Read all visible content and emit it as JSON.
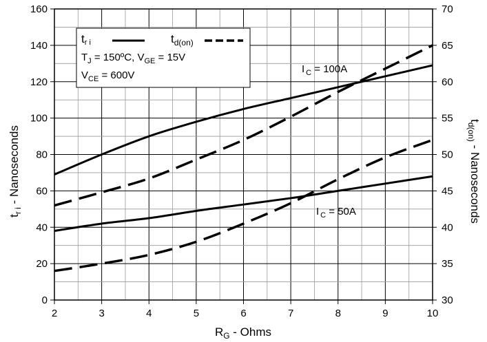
{
  "chart_data": {
    "type": "line",
    "x_axis": {
      "label_main": "R",
      "label_sub": "G",
      "label_rest": " - Ohms",
      "min": 2,
      "max": 10,
      "ticks": [
        "2",
        "3",
        "4",
        "5",
        "6",
        "7",
        "8",
        "9",
        "10"
      ]
    },
    "y_axis_left": {
      "label_main": "t",
      "label_sub": "r i",
      "label_rest": " - Nanoseconds",
      "min": 0,
      "max": 160,
      "ticks": [
        "0",
        "20",
        "40",
        "60",
        "80",
        "100",
        "120",
        "140",
        "160"
      ]
    },
    "y_axis_right": {
      "label_main": "t",
      "label_sub": "d(on)",
      "label_rest": " - Nanoseconds",
      "min": 30,
      "max": 70,
      "ticks": [
        "30",
        "35",
        "40",
        "45",
        "50",
        "55",
        "60",
        "65",
        "70"
      ]
    },
    "grid": true,
    "legend": {
      "placement": "top-left",
      "tri_main": "t",
      "tri_sub": "r i",
      "tdon_main": "t",
      "tdon_sub": "d(on)",
      "cond1_a": "T",
      "cond1_a_sub": "J",
      "cond1_b": " = 150ºC,  V",
      "cond1_b_sub": "GE",
      "cond1_c": " = 15V",
      "cond2_a": "V",
      "cond2_a_sub": "CE",
      "cond2_b": " = 600V"
    },
    "annotations": {
      "ic100_main": "I",
      "ic100_sub": "C",
      "ic100_rest": " = 100A",
      "ic50_main": "I",
      "ic50_sub": "C",
      "ic50_rest": " = 50A"
    },
    "series": [
      {
        "key": "tri_100",
        "axis": "left",
        "style": "solid",
        "x": [
          2,
          3,
          4,
          5,
          6,
          7,
          8,
          9,
          10
        ],
        "y": [
          69,
          80,
          90,
          98,
          105,
          111,
          117,
          123,
          129
        ]
      },
      {
        "key": "tri_50",
        "axis": "left",
        "style": "solid",
        "x": [
          2,
          3,
          4,
          5,
          6,
          7,
          8,
          9,
          10
        ],
        "y": [
          38,
          42,
          45,
          49,
          52.5,
          56,
          60,
          64,
          68
        ]
      },
      {
        "key": "tdon_100",
        "axis": "right",
        "style": "dashed",
        "x": [
          2,
          3,
          4,
          5,
          6,
          7,
          8,
          9,
          10
        ],
        "y": [
          43,
          44.8,
          46.7,
          49.3,
          52,
          55.2,
          58.6,
          61.8,
          65
        ]
      },
      {
        "key": "tdon_50",
        "axis": "right",
        "style": "dashed",
        "x": [
          2,
          3,
          4,
          5,
          6,
          7,
          8,
          9,
          10
        ],
        "y": [
          34,
          35,
          36.2,
          38,
          40.5,
          43.3,
          46.6,
          49.6,
          52
        ]
      }
    ]
  }
}
